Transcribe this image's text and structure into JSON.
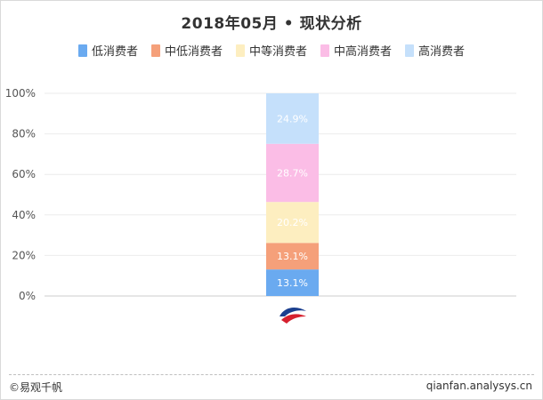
{
  "title": "2018年05月 • 现状分析",
  "legend": [
    {
      "label": "低消费者",
      "color": "#6aaaf0"
    },
    {
      "label": "中低消费者",
      "color": "#f5a07a"
    },
    {
      "label": "中等消费者",
      "color": "#fdeec0"
    },
    {
      "label": "中高消费者",
      "color": "#fbbde6"
    },
    {
      "label": "高消费者",
      "color": "#c5e0fb"
    }
  ],
  "chart_data": {
    "type": "bar",
    "stacked": true,
    "categories": [
      ""
    ],
    "category_icon": "china-eastern-airlines-logo",
    "series": [
      {
        "name": "低消费者",
        "values": [
          13.1
        ],
        "label": "13.1%",
        "color": "#6aaaf0"
      },
      {
        "name": "中低消费者",
        "values": [
          13.1
        ],
        "label": "13.1%",
        "color": "#f5a07a"
      },
      {
        "name": "中等消费者",
        "values": [
          20.2
        ],
        "label": "20.2%",
        "color": "#fdeec0"
      },
      {
        "name": "中高消费者",
        "values": [
          28.7
        ],
        "label": "28.7%",
        "color": "#fbbde6"
      },
      {
        "name": "高消费者",
        "values": [
          24.9
        ],
        "label": "24.9%",
        "color": "#c5e0fb"
      }
    ],
    "yticks": [
      "0%",
      "20%",
      "40%",
      "60%",
      "80%",
      "100%"
    ],
    "ylim": [
      0,
      100
    ],
    "grid": true,
    "legend_position": "top"
  },
  "footer": {
    "left": "©易观千帆",
    "right": "qianfan.analysys.cn"
  }
}
